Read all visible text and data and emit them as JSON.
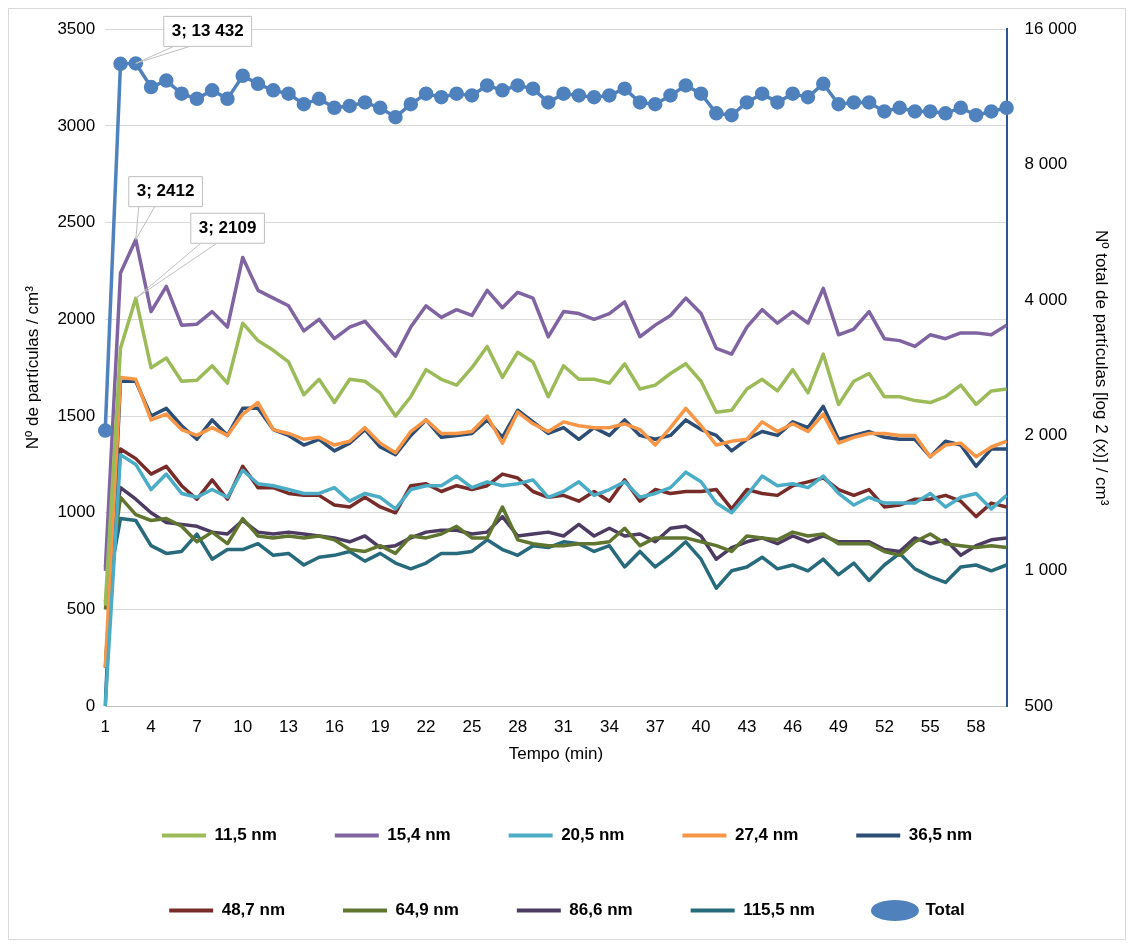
{
  "chart_data": {
    "type": "line",
    "xlabel": "Tempo (min)",
    "ylabel": "Nº de partículas / cm³",
    "y2label": "Nº total de partículas [log 2 (x)] / cm³",
    "categories": [
      "1",
      null,
      null,
      "4",
      null,
      null,
      "7",
      null,
      null,
      "10",
      null,
      null,
      "13",
      null,
      null,
      "16",
      null,
      null,
      "19",
      null,
      null,
      "22",
      null,
      null,
      "25",
      null,
      null,
      "28",
      null,
      null,
      "31",
      null,
      null,
      "34",
      null,
      null,
      "37",
      null,
      null,
      "40",
      null,
      null,
      "43",
      null,
      null,
      "46",
      null,
      null,
      "49",
      null,
      null,
      "52",
      null,
      null,
      "55",
      null,
      null,
      "58",
      null,
      null
    ],
    "ylim": [
      0,
      3500
    ],
    "yticks": [
      0,
      500,
      1000,
      1500,
      2000,
      2500,
      3000,
      3500
    ],
    "y2lim": [
      500,
      16000
    ],
    "y2ticks": [
      500,
      {
        "value": 1000,
        "label": "1 000"
      },
      {
        "value": 2000,
        "label": "2 000"
      },
      {
        "value": 4000,
        "label": "4 000"
      },
      {
        "value": 8000,
        "label": "8 000"
      },
      {
        "value": 16000,
        "label": "16 000"
      }
    ],
    "log": "y2",
    "grid": "y",
    "legend": "bottom",
    "line_style": "solid",
    "series": [
      {
        "name": "11,5 nm",
        "color": "#9bbb59",
        "marker": "none",
        "value_labels": [
          null,
          null,
          "3; 2109",
          null,
          null,
          null,
          null,
          null,
          null,
          null,
          null,
          null,
          null,
          null,
          null,
          null,
          null,
          null,
          null,
          null,
          null,
          null,
          null,
          null,
          null,
          null,
          null,
          null,
          null,
          null,
          null,
          null,
          null,
          null,
          null,
          null,
          null,
          null,
          null,
          null,
          null,
          null,
          null,
          null,
          null,
          null,
          null,
          null,
          null,
          null,
          null,
          null,
          null,
          null,
          null,
          null,
          null,
          null,
          null,
          null
        ],
        "values": [
          520,
          1850,
          2109,
          1750,
          1800,
          1680,
          1685,
          1760,
          1670,
          1980,
          1890,
          1840,
          1780,
          1610,
          1690,
          1570,
          1690,
          1680,
          1620,
          1500,
          1600,
          1740,
          1690,
          1660,
          1750,
          1860,
          1700,
          1830,
          1780,
          1600,
          1760,
          1690,
          1690,
          1670,
          1770,
          1640,
          1660,
          1720,
          1770,
          1680,
          1520,
          1530,
          1640,
          1690,
          1630,
          1740,
          1620,
          1820,
          1560,
          1680,
          1720,
          1600,
          1600,
          1580,
          1570,
          1600,
          1660,
          1560,
          1630,
          1640
        ]
      },
      {
        "name": "15,4 nm",
        "color": "#8064a2",
        "marker": "none",
        "value_labels": [
          null,
          null,
          "3; 2412",
          null,
          null,
          null,
          null,
          null,
          null,
          null,
          null,
          null,
          null,
          null,
          null,
          null,
          null,
          null,
          null,
          null,
          null,
          null,
          null,
          null,
          null,
          null,
          null,
          null,
          null,
          null,
          null,
          null,
          null,
          null,
          null,
          null,
          null,
          null,
          null,
          null,
          null,
          null,
          null,
          null,
          null,
          null,
          null,
          null,
          null,
          null,
          null,
          null,
          null,
          null,
          null,
          null,
          null,
          null,
          null,
          null
        ],
        "values": [
          700,
          2240,
          2412,
          2040,
          2170,
          1970,
          1975,
          2040,
          1960,
          2320,
          2150,
          2110,
          2070,
          1940,
          2000,
          1900,
          1960,
          1990,
          1900,
          1810,
          1960,
          2070,
          2010,
          2050,
          2020,
          2150,
          2060,
          2140,
          2110,
          1910,
          2040,
          2030,
          2000,
          2030,
          2090,
          1910,
          1970,
          2020,
          2110,
          2030,
          1850,
          1820,
          1960,
          2050,
          1980,
          2040,
          1980,
          2160,
          1920,
          1950,
          2040,
          1900,
          1890,
          1860,
          1920,
          1900,
          1930,
          1930,
          1920,
          1970
        ]
      },
      {
        "name": "20,5 nm",
        "color": "#4bacc6",
        "marker": "none",
        "values": [
          0,
          1300,
          1250,
          1120,
          1200,
          1100,
          1080,
          1120,
          1080,
          1220,
          1150,
          1140,
          1120,
          1100,
          1100,
          1130,
          1060,
          1100,
          1080,
          1020,
          1120,
          1140,
          1140,
          1190,
          1130,
          1160,
          1140,
          1150,
          1170,
          1080,
          1110,
          1160,
          1090,
          1120,
          1160,
          1080,
          1100,
          1130,
          1210,
          1160,
          1050,
          1000,
          1090,
          1190,
          1140,
          1150,
          1130,
          1190,
          1100,
          1040,
          1080,
          1050,
          1050,
          1050,
          1100,
          1030,
          1080,
          1100,
          1020,
          1090
        ]
      },
      {
        "name": "27,4 nm",
        "color": "#f79646",
        "marker": "none",
        "values": [
          200,
          1700,
          1690,
          1480,
          1510,
          1430,
          1400,
          1440,
          1400,
          1510,
          1570,
          1430,
          1410,
          1380,
          1390,
          1350,
          1370,
          1440,
          1360,
          1310,
          1420,
          1480,
          1410,
          1410,
          1420,
          1500,
          1360,
          1520,
          1460,
          1420,
          1470,
          1450,
          1440,
          1440,
          1460,
          1430,
          1350,
          1440,
          1540,
          1450,
          1350,
          1370,
          1380,
          1470,
          1420,
          1460,
          1420,
          1510,
          1360,
          1390,
          1410,
          1410,
          1400,
          1400,
          1290,
          1350,
          1360,
          1290,
          1340,
          1370
        ]
      },
      {
        "name": "36,5 nm",
        "color": "#2c4d75",
        "marker": "none",
        "values": [
          0,
          1680,
          1680,
          1500,
          1540,
          1450,
          1380,
          1480,
          1400,
          1540,
          1540,
          1430,
          1400,
          1350,
          1380,
          1320,
          1360,
          1430,
          1340,
          1300,
          1400,
          1480,
          1390,
          1400,
          1410,
          1480,
          1390,
          1530,
          1470,
          1410,
          1440,
          1380,
          1440,
          1400,
          1480,
          1400,
          1380,
          1400,
          1480,
          1430,
          1400,
          1320,
          1380,
          1420,
          1400,
          1470,
          1440,
          1550,
          1380,
          1400,
          1420,
          1390,
          1380,
          1380,
          1290,
          1370,
          1350,
          1240,
          1330,
          1330
        ]
      },
      {
        "name": "48,7 nm",
        "color": "#772c2a",
        "marker": "none",
        "values": [
          200,
          1330,
          1280,
          1200,
          1240,
          1140,
          1070,
          1170,
          1070,
          1240,
          1130,
          1130,
          1100,
          1090,
          1090,
          1040,
          1030,
          1080,
          1030,
          1000,
          1140,
          1150,
          1110,
          1140,
          1120,
          1140,
          1200,
          1180,
          1110,
          1080,
          1090,
          1060,
          1110,
          1060,
          1170,
          1060,
          1120,
          1100,
          1110,
          1110,
          1120,
          1020,
          1120,
          1100,
          1090,
          1140,
          1160,
          1180,
          1120,
          1090,
          1120,
          1030,
          1040,
          1070,
          1070,
          1090,
          1060,
          980,
          1050,
          1030
        ]
      },
      {
        "name": "64,9 nm",
        "color": "#5f7530",
        "marker": "none",
        "values": [
          500,
          1080,
          990,
          960,
          970,
          930,
          850,
          900,
          840,
          970,
          880,
          870,
          880,
          870,
          880,
          860,
          810,
          800,
          830,
          790,
          880,
          870,
          890,
          930,
          870,
          870,
          1030,
          860,
          840,
          830,
          830,
          840,
          840,
          850,
          920,
          830,
          870,
          870,
          870,
          850,
          830,
          800,
          880,
          870,
          860,
          900,
          880,
          890,
          840,
          840,
          840,
          800,
          780,
          850,
          890,
          840,
          830,
          820,
          830,
          820
        ]
      },
      {
        "name": "86,6 nm",
        "color": "#4d3b62",
        "marker": "none",
        "values": [
          720,
          1130,
          1070,
          1000,
          950,
          940,
          930,
          900,
          890,
          960,
          900,
          890,
          900,
          890,
          880,
          870,
          850,
          880,
          820,
          830,
          870,
          900,
          910,
          910,
          890,
          900,
          980,
          880,
          890,
          900,
          880,
          940,
          880,
          920,
          880,
          890,
          850,
          920,
          930,
          880,
          760,
          820,
          850,
          870,
          840,
          880,
          850,
          880,
          850,
          850,
          850,
          810,
          800,
          870,
          840,
          860,
          780,
          830,
          860,
          870
        ]
      },
      {
        "name": "115,5 nm",
        "color": "#276a7c",
        "marker": "none",
        "values": [
          540,
          970,
          960,
          830,
          790,
          800,
          890,
          760,
          810,
          810,
          840,
          780,
          790,
          730,
          770,
          780,
          800,
          750,
          790,
          740,
          710,
          740,
          790,
          790,
          800,
          860,
          810,
          780,
          830,
          820,
          850,
          840,
          800,
          830,
          720,
          800,
          720,
          780,
          850,
          760,
          610,
          700,
          720,
          770,
          710,
          730,
          700,
          760,
          680,
          740,
          650,
          730,
          790,
          710,
          670,
          640,
          720,
          730,
          700,
          730
        ]
      },
      {
        "name": "Total",
        "color": "#4f81bd",
        "axis": "y2",
        "marker": "circle",
        "value_labels": [
          null,
          null,
          "3; 13 432",
          null,
          null,
          null,
          null,
          null,
          null,
          null,
          null,
          null,
          null,
          null,
          null,
          null,
          null,
          null,
          null,
          null,
          null,
          null,
          null,
          null,
          null,
          null,
          null,
          null,
          null,
          null,
          null,
          null,
          null,
          null,
          null,
          null,
          null,
          null,
          null,
          null,
          null,
          null,
          null,
          null,
          null,
          null,
          null,
          null,
          null,
          null,
          null,
          null,
          null,
          null,
          null,
          null,
          null,
          null,
          null,
          null
        ],
        "values": [
          2050,
          13400,
          13432,
          11900,
          12300,
          11500,
          11200,
          11700,
          11200,
          12600,
          12100,
          11700,
          11500,
          10900,
          11200,
          10700,
          10800,
          11000,
          10700,
          10200,
          10900,
          11500,
          11300,
          11500,
          11400,
          12000,
          11700,
          12000,
          11800,
          11000,
          11500,
          11400,
          11300,
          11400,
          11800,
          11000,
          10900,
          11400,
          12000,
          11500,
          10400,
          10300,
          11000,
          11500,
          11000,
          11500,
          11300,
          12100,
          10900,
          11000,
          11000,
          10500,
          10700,
          10500,
          10500,
          10400,
          10700,
          10300,
          10500,
          10700
        ]
      }
    ]
  }
}
